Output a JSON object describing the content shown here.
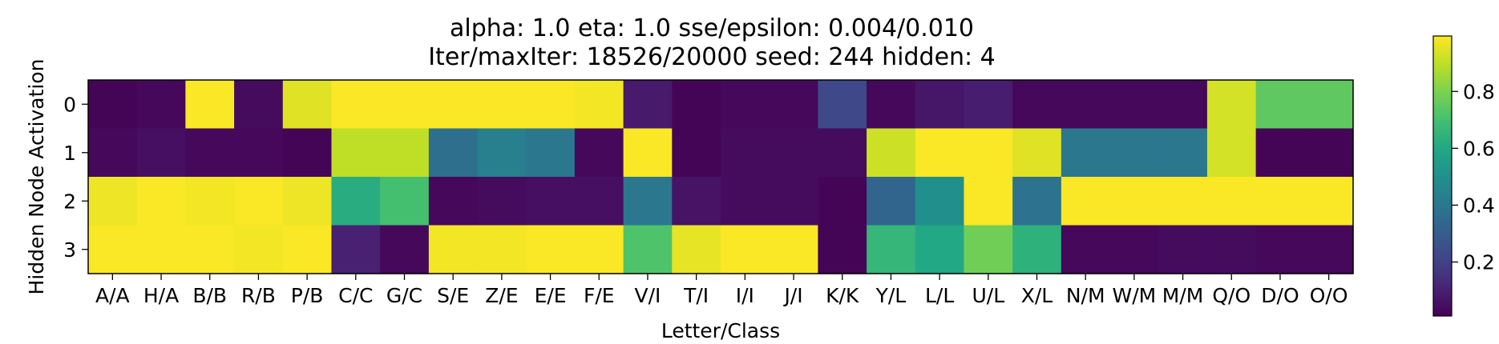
{
  "chart_data": {
    "type": "heatmap",
    "title_lines": [
      "alpha: 1.0  eta: 1.0  sse/epsilon: 0.004/0.010",
      "Iter/maxIter: 18526/20000  seed: 244  hidden: 4"
    ],
    "xlabel": "Letter/Class",
    "ylabel": "Hidden Node Activation",
    "columns": [
      "A/A",
      "H/A",
      "B/B",
      "R/B",
      "P/B",
      "C/C",
      "G/C",
      "S/E",
      "Z/E",
      "E/E",
      "F/E",
      "V/I",
      "T/I",
      "I/I",
      "J/I",
      "K/K",
      "Y/L",
      "L/L",
      "U/L",
      "X/L",
      "N/M",
      "W/M",
      "M/M",
      "Q/O",
      "D/O",
      "O/O"
    ],
    "rows": [
      "0",
      "1",
      "2",
      "3"
    ],
    "values": [
      [
        0.02,
        0.03,
        0.99,
        0.04,
        0.95,
        0.99,
        0.99,
        0.99,
        0.99,
        0.99,
        0.98,
        0.08,
        0.02,
        0.03,
        0.03,
        0.22,
        0.03,
        0.07,
        0.09,
        0.03,
        0.03,
        0.03,
        0.03,
        0.93,
        0.75,
        0.75
      ],
      [
        0.03,
        0.05,
        0.03,
        0.03,
        0.02,
        0.9,
        0.9,
        0.37,
        0.43,
        0.4,
        0.03,
        0.99,
        0.02,
        0.04,
        0.04,
        0.04,
        0.92,
        0.99,
        0.99,
        0.95,
        0.4,
        0.4,
        0.4,
        0.93,
        0.02,
        0.02
      ],
      [
        0.97,
        0.99,
        0.98,
        0.99,
        0.97,
        0.62,
        0.7,
        0.03,
        0.04,
        0.05,
        0.05,
        0.4,
        0.06,
        0.04,
        0.04,
        0.02,
        0.33,
        0.5,
        0.99,
        0.38,
        0.99,
        0.99,
        0.99,
        0.99,
        0.99,
        0.99
      ],
      [
        0.99,
        0.99,
        0.99,
        0.98,
        0.99,
        0.1,
        0.03,
        0.98,
        0.98,
        0.99,
        0.99,
        0.72,
        0.96,
        0.99,
        0.99,
        0.02,
        0.66,
        0.6,
        0.78,
        0.64,
        0.03,
        0.03,
        0.04,
        0.04,
        0.03,
        0.03
      ]
    ],
    "yticks": [
      "0",
      "1",
      "2",
      "3"
    ],
    "colorbar": {
      "colormap": "viridis",
      "ticks": [
        "0.2",
        "0.4",
        "0.6",
        "0.8"
      ],
      "tick_values": [
        0.2,
        0.4,
        0.6,
        0.8
      ],
      "range": [
        0.01,
        0.995
      ]
    }
  }
}
